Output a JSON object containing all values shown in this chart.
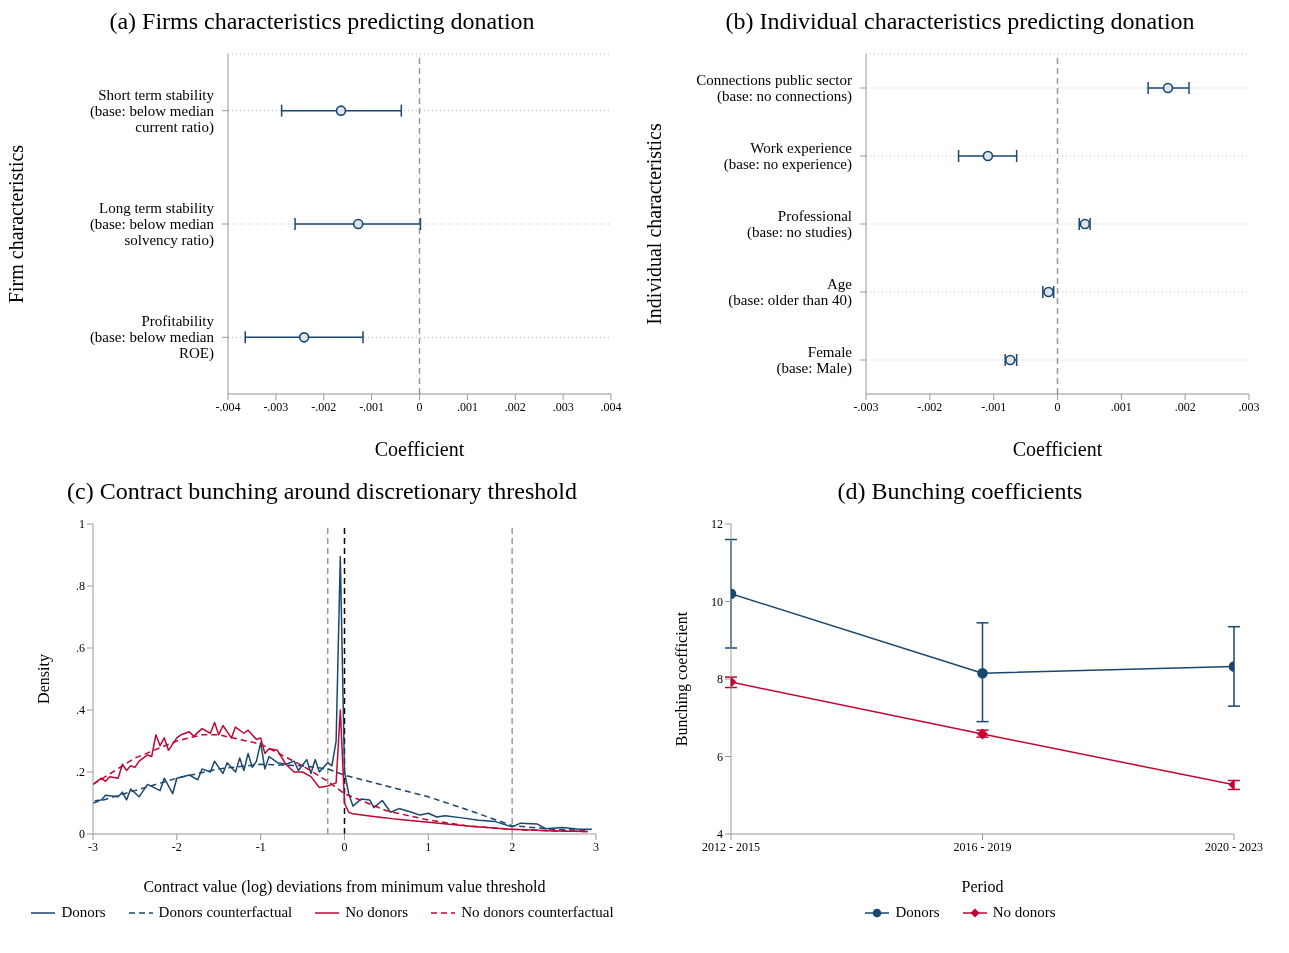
{
  "chart_data": [
    {
      "type": "scatter",
      "orientation": "horizontal",
      "title": "(a) Firms characteristics predicting donation",
      "xlabel": "Coefficient",
      "ylabel": "Firm characteristics",
      "categories": [
        "Short term stability\n(base: below median\ncurrent ratio)",
        "Long term stability\n(base: below median\nsolvency ratio)",
        "Profitability\n(base: below median\nROE)"
      ],
      "values": [
        -0.00164,
        -0.00128,
        -0.00241
      ],
      "color": "#1a476f",
      "errors": [
        [
          -0.00288,
          -0.00038
        ],
        [
          -0.0026,
          2e-05
        ],
        [
          -0.00364,
          -0.00118
        ]
      ],
      "xlim": [
        -0.004,
        0.004
      ],
      "xticks": [
        {
          "value": -0.004,
          "label": "-.004"
        },
        {
          "value": -0.003,
          "label": "-.003"
        },
        {
          "value": -0.002,
          "label": "-.002"
        },
        {
          "value": -0.001,
          "label": "-.001"
        },
        0,
        {
          "value": 0.001,
          "label": ".001"
        },
        {
          "value": 0.002,
          "label": ".002"
        },
        {
          "value": 0.003,
          "label": ".003"
        },
        {
          "value": 0.004,
          "label": ".004"
        }
      ],
      "ref_lines": [
        {
          "axis": "x",
          "value": 0,
          "color": "#999999",
          "line_style": "dashed"
        }
      ],
      "grid": "y",
      "marker": "circle"
    },
    {
      "type": "scatter",
      "orientation": "horizontal",
      "title": "(b) Individual characteristics predicting donation",
      "xlabel": "Coefficient",
      "ylabel": "Individual characteristics",
      "categories": [
        "Connections public sector\n(base: no connections)",
        "Work experience\n(base: no experience)",
        "Professional\n(base: no studies)",
        "Age\n(base: older than 40)",
        "Female\n(base: Male)"
      ],
      "values": [
        0.00173,
        -0.00109,
        0.00043,
        -0.00014,
        -0.00074
      ],
      "color": "#1a476f",
      "errors": [
        [
          0.00142,
          0.00206
        ],
        [
          -0.00155,
          -0.00064
        ],
        [
          0.00034,
          0.00051
        ],
        [
          -0.00023,
          -6e-05
        ],
        [
          -0.00082,
          -0.00064
        ]
      ],
      "xlim": [
        -0.003,
        0.003
      ],
      "xticks": [
        {
          "value": -0.003,
          "label": "-.003"
        },
        {
          "value": -0.002,
          "label": "-.002"
        },
        {
          "value": -0.001,
          "label": "-.001"
        },
        0,
        {
          "value": 0.001,
          "label": ".001"
        },
        {
          "value": 0.002,
          "label": ".002"
        },
        {
          "value": 0.003,
          "label": ".003"
        }
      ],
      "ref_lines": [
        {
          "axis": "x",
          "value": 0,
          "color": "#999999",
          "line_style": "dashed"
        }
      ],
      "grid": "y",
      "marker": "circle"
    },
    {
      "type": "line",
      "title": "(c) Contract bunching around discretionary threshold",
      "xlabel": "Contract value (log) deviations from minimum value threshold",
      "ylabel": "Density",
      "series": [
        {
          "name": "Donors",
          "color": "#1a476f",
          "line_style": "solid",
          "x": [
            -2.98,
            -2.9,
            -2.85,
            -2.7,
            -2.65,
            -2.6,
            -2.55,
            -2.45,
            -2.35,
            -2.2,
            -2.15,
            -2.05,
            -2,
            -1.85,
            -1.75,
            -1.7,
            -1.6,
            -1.55,
            -1.45,
            -1.4,
            -1.3,
            -1.25,
            -1.2,
            -1.15,
            -1.1,
            -1.05,
            -1,
            -0.95,
            -0.9,
            -0.8,
            -0.7,
            -0.6,
            -0.55,
            -0.45,
            -0.4,
            -0.35,
            -0.3,
            -0.2,
            -0.15,
            -0.1,
            -0.05,
            0,
            0.05,
            0.1,
            0.2,
            0.3,
            0.35,
            0.45,
            0.55,
            0.65,
            0.8,
            0.9,
            1,
            1.1,
            1.2,
            1.4,
            1.6,
            1.8,
            2,
            2.1,
            2.3,
            2.4,
            2.6,
            2.8,
            2.95
          ],
          "values": [
            0.107,
            0.11,
            0.125,
            0.12,
            0.135,
            0.11,
            0.145,
            0.12,
            0.16,
            0.14,
            0.18,
            0.13,
            0.18,
            0.19,
            0.175,
            0.21,
            0.2,
            0.235,
            0.195,
            0.23,
            0.2,
            0.245,
            0.205,
            0.26,
            0.215,
            0.235,
            0.295,
            0.21,
            0.25,
            0.23,
            0.225,
            0.235,
            0.205,
            0.24,
            0.195,
            0.24,
            0.2,
            0.23,
            0.22,
            0.3,
            0.895,
            0.2,
            0.13,
            0.09,
            0.113,
            0.11,
            0.085,
            0.108,
            0.07,
            0.082,
            0.07,
            0.061,
            0.067,
            0.055,
            0.059,
            0.052,
            0.044,
            0.04,
            0.023,
            0.035,
            0.032,
            0.017,
            0.021,
            0.015,
            0.015
          ]
        },
        {
          "name": "Donors counterfactual",
          "color": "#1a476f",
          "line_style": "dashed",
          "x": [
            -3,
            -2.5,
            -2,
            -1.5,
            -1,
            -0.5,
            -0.2,
            0,
            0.5,
            1,
            1.5,
            2,
            2.5,
            2.9
          ],
          "values": [
            0.1,
            0.14,
            0.18,
            0.21,
            0.225,
            0.22,
            0.21,
            0.19,
            0.155,
            0.12,
            0.075,
            0.027,
            0.015,
            0.012
          ]
        },
        {
          "name": "No donors",
          "color": "#c10534",
          "line_style": "solid",
          "x": [
            -3,
            -2.9,
            -2.85,
            -2.8,
            -2.7,
            -2.65,
            -2.6,
            -2.55,
            -2.5,
            -2.45,
            -2.35,
            -2.3,
            -2.25,
            -2.2,
            -2.15,
            -2.1,
            -2,
            -1.95,
            -1.85,
            -1.8,
            -1.7,
            -1.6,
            -1.55,
            -1.5,
            -1.45,
            -1.35,
            -1.3,
            -1.2,
            -1.15,
            -1.05,
            -1,
            -0.95,
            -0.9,
            -0.8,
            -0.7,
            -0.6,
            -0.5,
            -0.4,
            -0.3,
            -0.2,
            -0.1,
            -0.05,
            0,
            0.05,
            0.1,
            0.3,
            0.5,
            0.6,
            1,
            1.5,
            2,
            2.5,
            2.9
          ],
          "values": [
            0.16,
            0.18,
            0.17,
            0.185,
            0.18,
            0.225,
            0.205,
            0.22,
            0.215,
            0.235,
            0.255,
            0.25,
            0.32,
            0.285,
            0.31,
            0.27,
            0.31,
            0.32,
            0.33,
            0.315,
            0.34,
            0.325,
            0.36,
            0.32,
            0.35,
            0.31,
            0.345,
            0.325,
            0.335,
            0.305,
            0.31,
            0.26,
            0.275,
            0.27,
            0.225,
            0.2,
            0.2,
            0.185,
            0.15,
            0.155,
            0.165,
            0.4,
            0.1,
            0.07,
            0.065,
            0.058,
            0.052,
            0.048,
            0.038,
            0.025,
            0.015,
            0.01,
            0.008
          ]
        },
        {
          "name": "No donors counterfactual",
          "color": "#c10534",
          "line_style": "dashed",
          "x": [
            -3,
            -2.5,
            -2,
            -1.7,
            -1.5,
            -1,
            -0.5,
            -0.2,
            0,
            0.5,
            1,
            1.5,
            2,
            2.5,
            2.9
          ],
          "values": [
            0.16,
            0.245,
            0.3,
            0.32,
            0.32,
            0.29,
            0.22,
            0.17,
            0.13,
            0.075,
            0.045,
            0.025,
            0.015,
            0.01,
            0.008
          ]
        }
      ],
      "xlim": [
        -3,
        3
      ],
      "xticks": [
        -3,
        -2,
        -1,
        0,
        1,
        2,
        3
      ],
      "ylim": [
        0,
        1
      ],
      "yticks": [
        0,
        {
          "value": 0.2,
          "label": ".2"
        },
        {
          "value": 0.4,
          "label": ".4"
        },
        {
          "value": 0.6,
          "label": ".6"
        },
        {
          "value": 0.8,
          "label": ".8"
        },
        1
      ],
      "ref_lines": [
        {
          "axis": "x",
          "value": -0.2,
          "color": "#999999",
          "line_style": "dashed"
        },
        {
          "axis": "x",
          "value": 0,
          "color": "#000000",
          "line_style": "dashed"
        },
        {
          "axis": "x",
          "value": 2,
          "color": "#999999",
          "line_style": "dashed"
        }
      ],
      "legend": "bottom"
    },
    {
      "type": "line",
      "title": "(d) Bunching coefficients",
      "xlabel": "Period",
      "ylabel": "Bunching coefficient",
      "categories": [
        "2012 - 2015",
        "2016 - 2019",
        "2020 - 2023"
      ],
      "series": [
        {
          "name": "Donors",
          "color": "#1a476f",
          "marker": "circle",
          "values": [
            10.2,
            8.15,
            8.32
          ],
          "errors": [
            [
              8.8,
              11.6
            ],
            [
              6.9,
              9.45
            ],
            [
              7.3,
              9.35
            ]
          ]
        },
        {
          "name": "No donors",
          "color": "#c10534",
          "marker": "diamond",
          "values": [
            7.92,
            6.58,
            5.27
          ],
          "errors": [
            [
              7.78,
              8.05
            ],
            [
              6.5,
              6.68
            ],
            [
              5.15,
              5.38
            ]
          ]
        }
      ],
      "ylim": [
        4,
        12
      ],
      "yticks": [
        4,
        6,
        8,
        10,
        12
      ],
      "legend": "bottom"
    }
  ]
}
